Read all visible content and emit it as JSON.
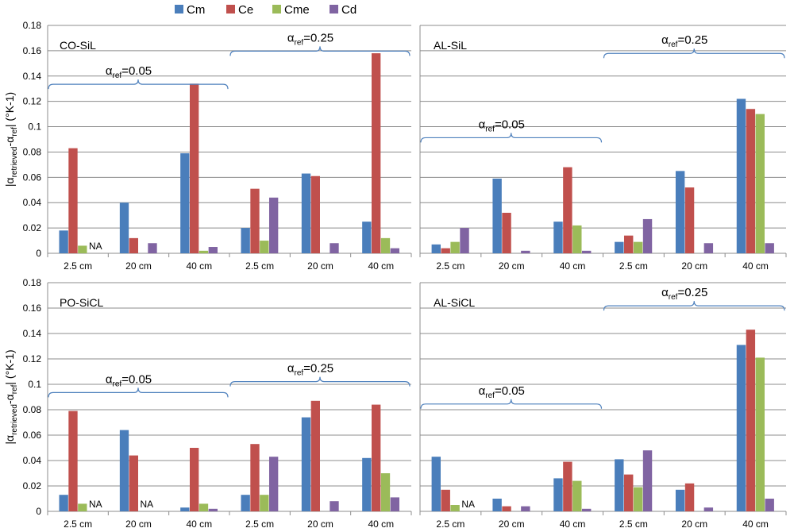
{
  "legend": {
    "position": "top-center",
    "items": [
      {
        "name": "Cm",
        "color": "#4a7ebb"
      },
      {
        "name": "Ce",
        "color": "#c0504d"
      },
      {
        "name": "Cme",
        "color": "#9bbb59"
      },
      {
        "name": "Cd",
        "color": "#8064a2"
      }
    ]
  },
  "y_axis_label": {
    "prefix": "|α",
    "sub1": "retrieved",
    "dash": "-α",
    "sub2": "ref",
    "suffix": "|  (°K-1)"
  },
  "chart_data": [
    {
      "type": "bar",
      "title": "CO-SiL",
      "categories": [
        "2.5 cm",
        "20 cm",
        "40 cm",
        "2.5 cm",
        "20 cm",
        "40 cm"
      ],
      "ylim": [
        0,
        0.18
      ],
      "yticks": [
        "0",
        "0.02",
        "0.04",
        "0.06",
        "0.08",
        "0.1",
        "0.12",
        "0.14",
        "0.16",
        "0.18"
      ],
      "series": [
        {
          "name": "Cm",
          "values": [
            0.018,
            0.04,
            0.079,
            0.02,
            0.063,
            0.025
          ]
        },
        {
          "name": "Ce",
          "values": [
            0.083,
            0.012,
            0.134,
            0.051,
            0.061,
            0.158
          ]
        },
        {
          "name": "Cme",
          "values": [
            0.006,
            null,
            0.002,
            0.01,
            null,
            0.012
          ]
        },
        {
          "name": "Cd",
          "values": [
            null,
            0.008,
            0.005,
            0.044,
            0.008,
            0.004
          ]
        }
      ],
      "na_labels": [
        {
          "text": "NA",
          "category_index": 0,
          "series_index": 3
        }
      ],
      "annotations": [
        {
          "group": "first",
          "alpha": "α",
          "sub": "ref",
          "value": "=0.05",
          "range": [
            0,
            2
          ],
          "level": 0.1335
        },
        {
          "group": "second",
          "alpha": "α",
          "sub": "ref",
          "value": "=0.25",
          "range": [
            3,
            5
          ],
          "level": 0.1597
        }
      ],
      "show_ylabel": true
    },
    {
      "type": "bar",
      "title": "AL-SiL",
      "categories": [
        "2.5 cm",
        "20 cm",
        "40 cm",
        "2.5 cm",
        "20 cm",
        "40 cm"
      ],
      "ylim": [
        0,
        0.18
      ],
      "yticks": [],
      "series": [
        {
          "name": "Cm",
          "values": [
            0.007,
            0.059,
            0.025,
            0.009,
            0.065,
            0.122
          ]
        },
        {
          "name": "Ce",
          "values": [
            0.004,
            0.032,
            0.068,
            0.014,
            0.052,
            0.114
          ]
        },
        {
          "name": "Cme",
          "values": [
            0.009,
            null,
            0.022,
            0.009,
            null,
            0.11
          ]
        },
        {
          "name": "Cd",
          "values": [
            0.02,
            0.002,
            0.002,
            0.027,
            0.008,
            0.008
          ]
        }
      ],
      "na_labels": [],
      "annotations": [
        {
          "group": "first",
          "alpha": "α",
          "sub": "ref",
          "value": "=0.05",
          "range": [
            0,
            2
          ],
          "level": 0.0913
        },
        {
          "group": "second",
          "alpha": "α",
          "sub": "ref",
          "value": "=0.25",
          "range": [
            3,
            5
          ],
          "level": 0.1579
        }
      ],
      "show_ylabel": false
    },
    {
      "type": "bar",
      "title": "PO-SiCL",
      "categories": [
        "2.5 cm",
        "20 cm",
        "40 cm",
        "2.5 cm",
        "20 cm",
        "40 cm"
      ],
      "ylim": [
        0,
        0.18
      ],
      "yticks": [
        "0",
        "0.02",
        "0.04",
        "0.06",
        "0.08",
        "0.1",
        "0.12",
        "0.14",
        "0.16",
        "0.18"
      ],
      "series": [
        {
          "name": "Cm",
          "values": [
            0.013,
            0.064,
            0.003,
            0.013,
            0.074,
            0.042
          ]
        },
        {
          "name": "Ce",
          "values": [
            0.079,
            0.044,
            0.05,
            0.053,
            0.087,
            0.084
          ]
        },
        {
          "name": "Cme",
          "values": [
            0.006,
            null,
            0.006,
            0.013,
            null,
            0.03
          ]
        },
        {
          "name": "Cd",
          "values": [
            null,
            null,
            0.002,
            0.043,
            0.008,
            0.011
          ]
        }
      ],
      "na_labels": [
        {
          "text": "NA",
          "category_index": 0,
          "series_index": 3
        },
        {
          "text": "NA",
          "category_index": 1,
          "series_index": 2
        }
      ],
      "annotations": [
        {
          "group": "first",
          "alpha": "α",
          "sub": "ref",
          "value": "=0.05",
          "range": [
            0,
            2
          ],
          "level": 0.0935
        },
        {
          "group": "second",
          "alpha": "α",
          "sub": "ref",
          "value": "=0.25",
          "range": [
            3,
            5
          ],
          "level": 0.1021
        }
      ],
      "show_ylabel": true
    },
    {
      "type": "bar",
      "title": "AL-SiCL",
      "categories": [
        "2.5 cm",
        "20 cm",
        "40 cm",
        "2.5 cm",
        "20 cm",
        "40 cm"
      ],
      "ylim": [
        0,
        0.18
      ],
      "yticks": [],
      "series": [
        {
          "name": "Cm",
          "values": [
            0.043,
            0.01,
            0.026,
            0.041,
            0.017,
            0.131
          ]
        },
        {
          "name": "Ce",
          "values": [
            0.017,
            0.004,
            0.039,
            0.029,
            0.022,
            0.143
          ]
        },
        {
          "name": "Cme",
          "values": [
            0.005,
            null,
            0.024,
            0.019,
            null,
            0.121
          ]
        },
        {
          "name": "Cd",
          "values": [
            null,
            0.004,
            0.002,
            0.048,
            0.003,
            0.01
          ]
        }
      ],
      "na_labels": [
        {
          "text": "NA",
          "category_index": 0,
          "series_index": 3
        }
      ],
      "annotations": [
        {
          "group": "first",
          "alpha": "α",
          "sub": "ref",
          "value": "=0.05",
          "range": [
            0,
            2
          ],
          "level": 0.0845
        },
        {
          "group": "second",
          "alpha": "α",
          "sub": "ref",
          "value": "=0.25",
          "range": [
            3,
            5
          ],
          "level": 0.1618
        }
      ],
      "show_ylabel": false
    }
  ]
}
